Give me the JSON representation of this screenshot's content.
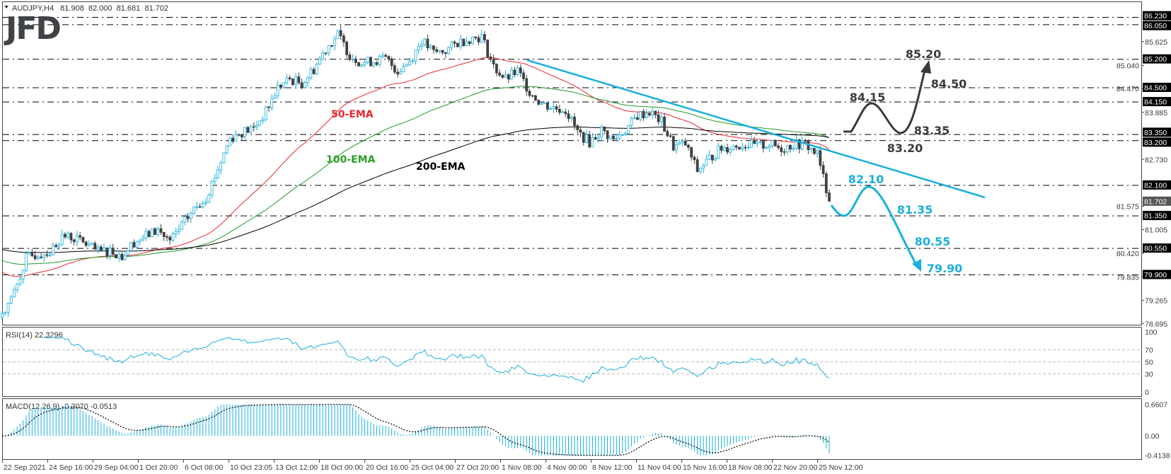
{
  "header": {
    "symbol": "AUDJPY,H4",
    "open": "81.908",
    "high": "82.000",
    "low": "81.681",
    "close": "81.702"
  },
  "logo": "JFD",
  "chart_data": {
    "type": "candlestick",
    "timeframe": "H4",
    "price_range": [
      78.695,
      86.23
    ],
    "price_ticks": [
      "85.625",
      "85.040",
      "84.470",
      "83.885",
      "82.730",
      "81.575",
      "81.005",
      "80.420",
      "79.835",
      "79.265",
      "78.695"
    ],
    "levels": [
      "86.230",
      "86.050",
      "85.200",
      "84.500",
      "84.150",
      "83.350",
      "83.200",
      "82.100",
      "81.350",
      "80.550",
      "79.900"
    ],
    "current_price": "81.702",
    "time_labels": [
      "22 Sep 2021",
      "24 Sep 16:00",
      "29 Sep 04:00",
      "1 Oct 20:00",
      "6 Oct 08:00",
      "10 Oct 23:05",
      "13 Oct 12:00",
      "18 Oct 00:00",
      "20 Oct 16:00",
      "25 Oct 04:00",
      "27 Oct 20:00",
      "1 Nov 08:00",
      "4 Nov 00:00",
      "8 Nov 12:00",
      "11 Nov 04:00",
      "15 Nov 16:00",
      "18 Nov 08:00",
      "22 Nov 20:00",
      "25 Nov 12:00"
    ],
    "closes": [
      78.94,
      79.45,
      80.3,
      80.4,
      80.45,
      80.85,
      80.8,
      80.65,
      80.45,
      80.5,
      80.35,
      80.7,
      80.85,
      81.0,
      80.7,
      81.1,
      81.5,
      81.8,
      82.5,
      83.25,
      83.4,
      83.5,
      83.9,
      84.5,
      84.7,
      84.6,
      84.95,
      85.45,
      85.8,
      85.3,
      85.1,
      85.15,
      85.2,
      84.9,
      85.15,
      85.65,
      85.35,
      85.4,
      85.6,
      85.7,
      85.75,
      85.0,
      84.7,
      84.9,
      84.4,
      84.1,
      84.0,
      83.95,
      83.4,
      83.15,
      83.45,
      83.2,
      83.45,
      83.8,
      83.9,
      83.65,
      83.05,
      83.1,
      82.45,
      82.75,
      83.0,
      83.05,
      83.1,
      83.05,
      83.1,
      83.0,
      83.1,
      83.1,
      82.85,
      81.7
    ],
    "ema": [
      {
        "name": "50-EMA",
        "period": 50,
        "color": "#e8282f",
        "start": 80.0
      },
      {
        "name": "100-EMA",
        "period": 100,
        "color": "#1f9a2a",
        "start": 80.27
      },
      {
        "name": "200-EMA",
        "period": 200,
        "color": "#000000",
        "start": 80.53
      }
    ],
    "colors": {
      "bull": "#1ab0dc",
      "bear": "#404040",
      "trendline": "#1ab0dc",
      "bullish_path": "#3a3a3a",
      "bearish_path": "#1ab0dc"
    },
    "trendline": {
      "from_price": 85.2,
      "to_price": 81.8
    },
    "scenarios": {
      "bullish": {
        "labels": [
          "85.20",
          "84.50",
          "84.15",
          "83.35",
          "83.20"
        ]
      },
      "bearish": {
        "labels": [
          "82.10",
          "81.35",
          "80.55",
          "79.90"
        ]
      }
    },
    "rsi": {
      "label": "RSI(14) 22.3296",
      "ticks": [
        "100",
        "70",
        "50",
        "30",
        "0"
      ],
      "levels": [
        70,
        50,
        30
      ]
    },
    "macd": {
      "label": "MACD(12,26,9) -0.2070 -0.0513",
      "ticks": [
        "0.6607",
        "0.00",
        "-0.4138"
      ],
      "range": [
        -0.4138,
        0.6607
      ]
    }
  }
}
